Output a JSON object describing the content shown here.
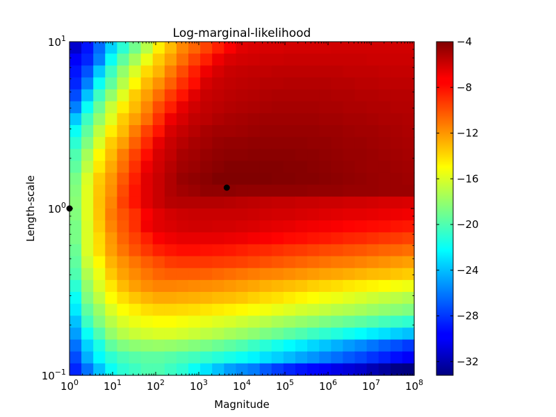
{
  "chart_data": {
    "type": "heatmap",
    "title": "Log-marginal-likelihood",
    "xlabel": "Magnitude",
    "ylabel": "Length-scale",
    "x_scale": "log",
    "y_scale": "log",
    "x_log10_range": [
      0,
      8
    ],
    "y_log10_range": [
      -1,
      1
    ],
    "x_ticks": [
      {
        "base": "10",
        "exp": "0",
        "v": 0
      },
      {
        "base": "10",
        "exp": "1",
        "v": 1
      },
      {
        "base": "10",
        "exp": "2",
        "v": 2
      },
      {
        "base": "10",
        "exp": "3",
        "v": 3
      },
      {
        "base": "10",
        "exp": "4",
        "v": 4
      },
      {
        "base": "10",
        "exp": "5",
        "v": 5
      },
      {
        "base": "10",
        "exp": "6",
        "v": 6
      },
      {
        "base": "10",
        "exp": "7",
        "v": 7
      },
      {
        "base": "10",
        "exp": "8",
        "v": 8
      }
    ],
    "y_ticks": [
      {
        "base": "10",
        "exp": "-1",
        "v": -1
      },
      {
        "base": "10",
        "exp": "0",
        "v": 0
      },
      {
        "base": "10",
        "exp": "1",
        "v": 1
      }
    ],
    "colormap": "jet",
    "color_range": [
      -33.2,
      -4
    ],
    "colorbar_ticks": [
      "−4",
      "−8",
      "−12",
      "−16",
      "−20",
      "−24",
      "−28",
      "−32"
    ],
    "colorbar_tick_values": [
      -4,
      -8,
      -12,
      -16,
      -20,
      -24,
      -28,
      -32
    ],
    "n_cols": 29,
    "n_rows": 28,
    "row_order": "top-to-bottom (length-scale 10^1 down to 10^-1)",
    "z": [
      [
        -31,
        -29,
        -26.5,
        -23.5,
        -21,
        -19,
        -17,
        -14.5,
        -13,
        -11.5,
        -10.5,
        -9.5,
        -8.5,
        -7.5,
        -6.8,
        -6.6,
        -6.5,
        -6.5,
        -6.4,
        -6.4,
        -6.4,
        -6.4,
        -6.3,
        -6.3,
        -6.3,
        -6.3,
        -6.3,
        -6.3,
        -6.3
      ],
      [
        -29.7,
        -28.5,
        -25.9,
        -22,
        -19.5,
        -17.5,
        -15.5,
        -13.5,
        -12.2,
        -10.8,
        -9.5,
        -8.5,
        -7.2,
        -6.6,
        -6.4,
        -6.3,
        -6.2,
        -6.2,
        -6.1,
        -6.1,
        -6.1,
        -6.1,
        -6.1,
        -6.1,
        -6.1,
        -6.2,
        -6.2,
        -6.2,
        -6.2
      ],
      [
        -29,
        -27.2,
        -23.8,
        -20.5,
        -18,
        -16,
        -13.9,
        -12.8,
        -11.2,
        -9.8,
        -8.5,
        -7.2,
        -6.5,
        -6.1,
        -6,
        -5.9,
        -5.9,
        -5.8,
        -5.8,
        -5.8,
        -5.8,
        -5.8,
        -5.8,
        -5.9,
        -5.9,
        -5.9,
        -6,
        -6,
        -6
      ],
      [
        -28.5,
        -25.9,
        -22,
        -19.5,
        -17,
        -14.8,
        -13,
        -11.8,
        -10.4,
        -9,
        -8,
        -6.5,
        -6.1,
        -5.9,
        -5.8,
        -5.7,
        -5.6,
        -5.6,
        -5.5,
        -5.5,
        -5.5,
        -5.5,
        -5.6,
        -5.6,
        -5.7,
        -5.7,
        -5.8,
        -5.8,
        -5.8
      ],
      [
        -27.4,
        -24,
        -20.5,
        -18,
        -15.8,
        -13.5,
        -12.2,
        -10.8,
        -9.3,
        -8.2,
        -6.8,
        -6.1,
        -5.9,
        -5.7,
        -5.6,
        -5.5,
        -5.4,
        -5.3,
        -5.3,
        -5.3,
        -5.3,
        -5.3,
        -5.4,
        -5.4,
        -5.5,
        -5.5,
        -5.6,
        -5.6,
        -5.6
      ],
      [
        -25.9,
        -22,
        -19.2,
        -16.5,
        -14.5,
        -13,
        -11.5,
        -9.8,
        -8.5,
        -7,
        -6.3,
        -5.9,
        -5.7,
        -5.5,
        -5.4,
        -5.3,
        -5.2,
        -5.1,
        -5.1,
        -5.1,
        -5.1,
        -5.2,
        -5.2,
        -5.3,
        -5.3,
        -5.4,
        -5.4,
        -5.5,
        -5.5
      ],
      [
        -23.8,
        -20.5,
        -18,
        -15.8,
        -13.5,
        -12.2,
        -10.8,
        -9,
        -7.2,
        -6.5,
        -5.9,
        -5.7,
        -5.4,
        -5.2,
        -5.1,
        -5,
        -4.9,
        -4.9,
        -4.9,
        -4.9,
        -4.9,
        -5,
        -5,
        -5.1,
        -5.1,
        -5.2,
        -5.3,
        -5.3,
        -5.4
      ],
      [
        -22,
        -19.5,
        -16.8,
        -14.5,
        -13,
        -11.2,
        -9.5,
        -8.2,
        -6.5,
        -6,
        -5.6,
        -5.2,
        -5,
        -5,
        -4.9,
        -4.8,
        -4.7,
        -4.7,
        -4.7,
        -4.7,
        -4.7,
        -4.8,
        -4.8,
        -4.9,
        -5,
        -5,
        -5.1,
        -5.2,
        -5.3
      ],
      [
        -21,
        -18.6,
        -16,
        -13.5,
        -12.2,
        -10.4,
        -8.8,
        -7,
        -6.1,
        -5.6,
        -5.2,
        -5,
        -4.7,
        -4.6,
        -4.6,
        -4.5,
        -4.5,
        -4.5,
        -4.5,
        -4.5,
        -4.6,
        -4.6,
        -4.7,
        -4.8,
        -4.8,
        -4.9,
        -5,
        -5.1,
        -5.2
      ],
      [
        -20,
        -17.5,
        -14.8,
        -13,
        -11.2,
        -9.5,
        -8,
        -6.5,
        -5.9,
        -5.2,
        -5,
        -4.7,
        -4.5,
        -4.4,
        -4.4,
        -4.3,
        -4.3,
        -4.3,
        -4.3,
        -4.4,
        -4.4,
        -4.5,
        -4.6,
        -4.7,
        -4.7,
        -4.8,
        -4.9,
        -5,
        -5.1
      ],
      [
        -19.5,
        -16.8,
        -14.3,
        -12.5,
        -10.8,
        -9,
        -7.2,
        -6.3,
        -5.6,
        -5,
        -4.8,
        -4.5,
        -4.3,
        -4.1,
        -4.1,
        -4.1,
        -4.1,
        -4.1,
        -4.2,
        -4.2,
        -4.3,
        -4.4,
        -4.5,
        -4.6,
        -4.7,
        -4.8,
        -4.8,
        -4.9,
        -5
      ],
      [
        -18.8,
        -16,
        -13.5,
        -12,
        -10.2,
        -8.5,
        -6.8,
        -6.1,
        -5.4,
        -4.7,
        -4.5,
        -4.3,
        -4,
        -4,
        -4,
        -4,
        -4,
        -4.1,
        -4.1,
        -4.2,
        -4.2,
        -4.3,
        -4.4,
        -4.5,
        -4.6,
        -4.7,
        -4.8,
        -4.8,
        -4.9
      ],
      [
        -18.5,
        -15.8,
        -13.3,
        -11.8,
        -9.8,
        -8.2,
        -6.8,
        -6.1,
        -5.4,
        -5,
        -4.8,
        -4.5,
        -4.5,
        -4.4,
        -4.5,
        -4.5,
        -4.5,
        -4.5,
        -4.5,
        -4.5,
        -4.6,
        -4.6,
        -4.6,
        -4.7,
        -4.7,
        -4.7,
        -4.8,
        -4.8,
        -4.8
      ],
      [
        -18.3,
        -15.8,
        -13.2,
        -11.5,
        -9.5,
        -8.2,
        -6.8,
        -6.1,
        -5.6,
        -5.5,
        -5.5,
        -5.5,
        -5.5,
        -5.6,
        -5.7,
        -5.8,
        -5.9,
        -6,
        -6,
        -6.1,
        -6.1,
        -6.2,
        -6.2,
        -6.3,
        -6.3,
        -6.4,
        -6.5,
        -6.5,
        -6.6
      ],
      [
        -18.5,
        -15.8,
        -13.3,
        -11.2,
        -10,
        -9,
        -7.5,
        -6.8,
        -6.4,
        -6.2,
        -6.1,
        -6.1,
        -6.1,
        -6.1,
        -6.1,
        -6.2,
        -6.3,
        -6.4,
        -6.4,
        -6.5,
        -6.6,
        -6.7,
        -6.8,
        -6.9,
        -6.9,
        -7,
        -7.1,
        -7.2,
        -7.3
      ],
      [
        -18.8,
        -16,
        -13.5,
        -11.5,
        -10.2,
        -9,
        -7.3,
        -6.8,
        -6.6,
        -6.4,
        -6.3,
        -6.3,
        -6.4,
        -6.4,
        -6.5,
        -6.6,
        -6.8,
        -6.9,
        -7,
        -7.2,
        -7.3,
        -7.4,
        -7.5,
        -7.7,
        -7.8,
        -7.9,
        -8,
        -8.2,
        -8.3
      ],
      [
        -18.8,
        -16,
        -13.9,
        -12,
        -10.5,
        -9.5,
        -8.5,
        -7.5,
        -7.2,
        -7,
        -7,
        -7,
        -7,
        -7.1,
        -7.2,
        -7.4,
        -7.5,
        -7.7,
        -7.9,
        -8,
        -8.2,
        -8.3,
        -8.5,
        -8.7,
        -8.8,
        -9,
        -9.2,
        -9.3,
        -9.5
      ],
      [
        -19.2,
        -16,
        -14,
        -12.2,
        -11,
        -10,
        -9.2,
        -8.5,
        -8.2,
        -8,
        -8,
        -8.1,
        -8.2,
        -8.3,
        -8.5,
        -8.7,
        -8.8,
        -9,
        -9.2,
        -9.3,
        -9.5,
        -9.7,
        -9.8,
        -10,
        -10.1,
        -10.3,
        -10.5,
        -10.6,
        -10.8
      ],
      [
        -19.5,
        -16.5,
        -14.8,
        -12.8,
        -11.8,
        -11,
        -10.3,
        -9.8,
        -9.3,
        -9.2,
        -9.2,
        -9.2,
        -9.3,
        -9.4,
        -9.5,
        -9.7,
        -9.9,
        -10.1,
        -10.3,
        -10.5,
        -10.7,
        -10.9,
        -11.1,
        -11.2,
        -11.4,
        -11.6,
        -11.8,
        -12,
        -12.2
      ],
      [
        -20,
        -17.2,
        -15.5,
        -13.4,
        -12.3,
        -11.6,
        -11,
        -10.5,
        -10.3,
        -10.3,
        -10.3,
        -10.4,
        -10.6,
        -10.8,
        -11,
        -11.2,
        -11.4,
        -11.5,
        -11.7,
        -11.9,
        -12.1,
        -12.3,
        -12.4,
        -12.6,
        -12.8,
        -13,
        -13.1,
        -13.3,
        -13.5
      ],
      [
        -21,
        -18,
        -16,
        -14.3,
        -13,
        -12.2,
        -11.7,
        -11.4,
        -11.4,
        -11.5,
        -11.6,
        -11.7,
        -11.8,
        -12,
        -12.2,
        -12.4,
        -12.7,
        -12.9,
        -13.1,
        -13.3,
        -13.6,
        -13.8,
        -14,
        -14.3,
        -14.5,
        -14.7,
        -14.9,
        -15.2,
        -15.4
      ],
      [
        -22,
        -18.6,
        -16.8,
        -15,
        -14,
        -13.3,
        -12.8,
        -12.5,
        -12.5,
        -12.6,
        -12.7,
        -12.8,
        -13,
        -13.1,
        -13.3,
        -13.6,
        -13.9,
        -14.1,
        -14.4,
        -14.7,
        -15,
        -15.3,
        -15.5,
        -15.8,
        -16.1,
        -16.4,
        -16.7,
        -16.9,
        -17.2
      ],
      [
        -22.8,
        -19.5,
        -17.8,
        -16,
        -15,
        -14.5,
        -14,
        -13.8,
        -13.8,
        -13.9,
        -14,
        -14.2,
        -14.4,
        -14.6,
        -14.8,
        -15.1,
        -15.3,
        -15.6,
        -15.9,
        -16.2,
        -16.4,
        -16.7,
        -17,
        -17.2,
        -17.5,
        -17.8,
        -18.1,
        -18.3,
        -18.6
      ],
      [
        -24,
        -20.5,
        -18.6,
        -17,
        -16,
        -15.5,
        -15.2,
        -15,
        -15,
        -15.2,
        -15.4,
        -15.6,
        -15.9,
        -16.1,
        -16.4,
        -16.7,
        -17,
        -17.4,
        -17.7,
        -18,
        -18.3,
        -18.7,
        -19,
        -19.3,
        -19.6,
        -19.9,
        -20.3,
        -20.6,
        -20.9
      ],
      [
        -25,
        -22,
        -20,
        -18,
        -17,
        -16.5,
        -16.2,
        -16,
        -16,
        -16.2,
        -16.5,
        -16.8,
        -17.1,
        -17.5,
        -17.8,
        -18.2,
        -18.7,
        -19.1,
        -19.6,
        -20,
        -20.5,
        -20.9,
        -21.3,
        -21.8,
        -22.2,
        -22.7,
        -23.1,
        -23.6,
        -24
      ],
      [
        -26.3,
        -23.5,
        -21.5,
        -19.5,
        -18.6,
        -18.2,
        -18,
        -17.9,
        -18,
        -18.2,
        -18.5,
        -18.8,
        -19.2,
        -19.6,
        -20,
        -20.6,
        -21.1,
        -21.7,
        -22.3,
        -22.8,
        -23.4,
        -23.9,
        -24.5,
        -25.1,
        -25.6,
        -26.2,
        -26.8,
        -27.3,
        -27.9
      ],
      [
        -27.4,
        -24.5,
        -22.3,
        -21,
        -20.2,
        -19.8,
        -19.6,
        -19.6,
        -19.8,
        -20.1,
        -20.4,
        -20.8,
        -21.2,
        -21.6,
        -22,
        -22.5,
        -23.1,
        -23.6,
        -24.2,
        -24.8,
        -25.3,
        -25.9,
        -26.4,
        -27,
        -27.5,
        -28.1,
        -28.6,
        -29.2,
        -29.7
      ],
      [
        -28.5,
        -26.3,
        -24,
        -22,
        -21,
        -20.5,
        -20,
        -20,
        -20.5,
        -21,
        -22,
        -23,
        -24,
        -25,
        -25.5,
        -26,
        -27,
        -27.8,
        -28.5,
        -29,
        -29.4,
        -29.7,
        -30.2,
        -30.6,
        -31,
        -31.7,
        -32.3,
        -33,
        -33.2
      ]
    ],
    "markers": [
      {
        "name": "optimum-point",
        "x_log10": 3.65,
        "y_log10": 0.125,
        "color": "#000000"
      },
      {
        "name": "initial-point",
        "x_log10": 0,
        "y_log10": 0,
        "color": "#000000"
      }
    ],
    "grid": false,
    "legend": "none"
  }
}
